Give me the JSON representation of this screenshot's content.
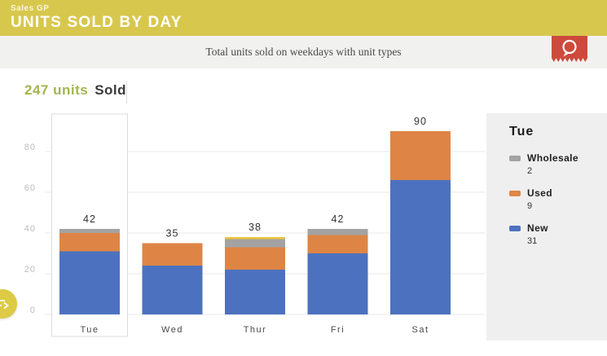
{
  "header": {
    "app_label": "Sales GP",
    "title": "UNITS SOLD BY DAY",
    "background_color": "#d8c74d",
    "text_color": "#ffffff"
  },
  "subtitle_bar": {
    "text": "Total units sold on weekdays with unit types",
    "background_color": "#f1f1ef",
    "ribbon": {
      "icon": "chat-bubble-icon",
      "color": "#cd4a3c"
    }
  },
  "summary": {
    "value_text": "247 units",
    "label_text": "Sold",
    "value_color": "#a2b64f"
  },
  "chart_data": {
    "type": "bar",
    "stacked": true,
    "title": "247 units Sold",
    "categories": [
      "Tue",
      "Wed",
      "Thur",
      "Fri",
      "Sat"
    ],
    "series": [
      {
        "name": "New",
        "color": "#4c72bf",
        "values": [
          31,
          24,
          22,
          30,
          66
        ]
      },
      {
        "name": "Used",
        "color": "#de8545",
        "values": [
          9,
          11,
          11,
          9,
          24
        ]
      },
      {
        "name": "Wholesale",
        "color": "#a3a3a3",
        "values": [
          2,
          0,
          4,
          3,
          0
        ]
      },
      {
        "name": "",
        "color": "#eec33f",
        "values": [
          0,
          0,
          1,
          0,
          0
        ]
      }
    ],
    "totals": [
      42,
      35,
      38,
      42,
      90
    ],
    "xlabel": "",
    "ylabel": "",
    "ylim": [
      0,
      100
    ],
    "yticks": [
      0,
      20,
      40,
      60,
      80
    ],
    "grid": true,
    "legend_position": "right",
    "selected_category": "Tue"
  },
  "tooltip_panel": {
    "title": "Tue",
    "background_color": "#efefef",
    "entries": [
      {
        "label": "Wholesale",
        "value": "2",
        "color": "#a3a3a3"
      },
      {
        "label": "Used",
        "value": "9",
        "color": "#de8545"
      },
      {
        "label": "New",
        "value": "31",
        "color": "#4c72bf"
      }
    ]
  },
  "fab": {
    "icon": "menu-arrow-icon",
    "color": "#ddca45"
  }
}
